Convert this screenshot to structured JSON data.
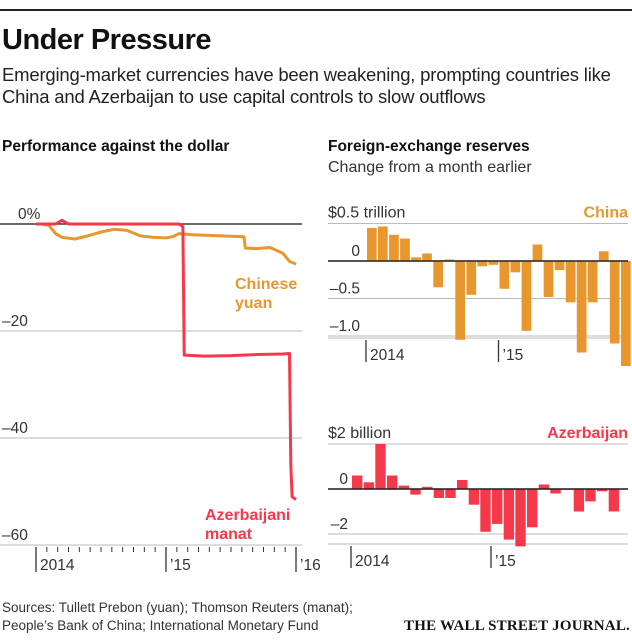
{
  "header": {
    "title": "Under Pressure",
    "subtitle": "Emerging-market currencies have been weakening, prompting countries like China and Azerbaijan to use capital controls to slow outflows"
  },
  "colors": {
    "yuan": "#E8962E",
    "manat": "#F5394A",
    "china_bars": "#E8962E",
    "azerbaijan_bars": "#F5394A",
    "axis": "#111111",
    "grid": "#BBBBBB"
  },
  "footer": {
    "sources_line1": "Sources: Tullett Prebon (yuan); Thomson Reuters (manat);",
    "sources_line2": "People’s Bank of China; International Monetary Fund",
    "publisher": "THE WALL STREET JOURNAL."
  },
  "chart_data": [
    {
      "type": "line",
      "title": "Performance against the dollar",
      "ylabel": "",
      "ylim": [
        -60,
        0
      ],
      "yticks": [
        {
          "value": 0,
          "label": "0%"
        },
        {
          "value": -20,
          "label": "–20"
        },
        {
          "value": -40,
          "label": "–40"
        },
        {
          "value": -60,
          "label": "–60"
        }
      ],
      "xlim": [
        2014.0,
        2016.0
      ],
      "xticks": [
        {
          "value": 2014.0,
          "label": "2014"
        },
        {
          "value": 2015.0,
          "label": "’15"
        },
        {
          "value": 2016.0,
          "label": "’16"
        }
      ],
      "series": [
        {
          "name": "Chinese yuan",
          "label_line1": "Chinese",
          "label_line2": "yuan",
          "x": [
            2014.0,
            2014.05,
            2014.1,
            2014.15,
            2014.2,
            2014.3,
            2014.4,
            2014.5,
            2014.6,
            2014.7,
            2014.8,
            2014.9,
            2015.0,
            2015.05,
            2015.1,
            2015.2,
            2015.3,
            2015.4,
            2015.5,
            2015.6,
            2015.61,
            2015.7,
            2015.8,
            2015.9,
            2015.95,
            2016.0
          ],
          "values": [
            0,
            0,
            -0.3,
            -1.8,
            -2.5,
            -2.8,
            -2.2,
            -1.5,
            -1.0,
            -1.2,
            -2.2,
            -2.5,
            -2.6,
            -2.4,
            -1.8,
            -2.0,
            -2.1,
            -2.2,
            -2.3,
            -2.4,
            -4.5,
            -4.6,
            -4.4,
            -5.5,
            -7.0,
            -7.5
          ]
        },
        {
          "name": "Azerbaijani manat",
          "label_line1": "Azerbaijani",
          "label_line2": "manat",
          "x": [
            2014.0,
            2014.15,
            2014.2,
            2014.25,
            2014.5,
            2014.8,
            2014.97,
            2015.1,
            2015.13,
            2015.14,
            2015.3,
            2015.5,
            2015.7,
            2015.9,
            2015.95,
            2015.96,
            2015.97,
            2016.0
          ],
          "values": [
            0,
            0,
            0.7,
            0,
            0,
            0,
            0,
            0,
            -0.5,
            -24.5,
            -24.7,
            -24.6,
            -24.4,
            -24.3,
            -24.2,
            -45,
            -51,
            -51.5
          ]
        }
      ],
      "grid": true,
      "legend": "inline-labels"
    },
    {
      "type": "bar",
      "title": "Foreign-exchange reserves",
      "subtitle": "Change from a month earlier",
      "panel_label": "China",
      "unit_label": "$0.5 trillion",
      "ylim": [
        -1.15,
        0.5
      ],
      "yticks": [
        {
          "value": 0.5,
          "label": "$0.5 trillion"
        },
        {
          "value": 0,
          "label": "0"
        },
        {
          "value": -0.5,
          "label": "–0.5"
        },
        {
          "value": -1.0,
          "label": "–1.0"
        }
      ],
      "xticks": [
        {
          "index": 0,
          "label": "2014"
        },
        {
          "index": 12,
          "label": "’15"
        }
      ],
      "categories": [
        "Jan 2014",
        "Feb 2014",
        "Mar 2014",
        "Apr 2014",
        "May 2014",
        "Jun 2014",
        "Jul 2014",
        "Aug 2014",
        "Sep 2014",
        "Oct 2014",
        "Nov 2014",
        "Dec 2014",
        "Jan 2015",
        "Feb 2015",
        "Mar 2015",
        "Apr 2015",
        "May 2015",
        "Jun 2015",
        "Jul 2015",
        "Aug 2015",
        "Sep 2015",
        "Oct 2015",
        "Nov 2015",
        "Dec 2015"
      ],
      "values": [
        0.44,
        0.46,
        0.35,
        0.3,
        0.05,
        0.1,
        -0.35,
        0.02,
        -1.05,
        -0.45,
        -0.07,
        -0.05,
        -0.37,
        -0.15,
        -0.93,
        0.22,
        -0.48,
        -0.12,
        -0.55,
        -1.22,
        -0.55,
        0.13,
        -1.1,
        -1.4
      ],
      "grid": true
    },
    {
      "type": "bar",
      "panel_label": "Azerbaijan",
      "unit_label": "$2 billion",
      "ylim": [
        -2.8,
        2.2
      ],
      "yticks": [
        {
          "value": 2,
          "label": "$2 billion"
        },
        {
          "value": 0,
          "label": "0"
        },
        {
          "value": -2,
          "label": "–2"
        }
      ],
      "xticks": [
        {
          "index": 0,
          "label": "2014"
        },
        {
          "index": 12,
          "label": "’15"
        }
      ],
      "categories": [
        "Jan 2014",
        "Feb 2014",
        "Mar 2014",
        "Apr 2014",
        "May 2014",
        "Jun 2014",
        "Jul 2014",
        "Aug 2014",
        "Sep 2014",
        "Oct 2014",
        "Nov 2014",
        "Dec 2014",
        "Jan 2015",
        "Feb 2015",
        "Mar 2015",
        "Apr 2015",
        "May 2015",
        "Jun 2015",
        "Jul 2015",
        "Aug 2015",
        "Sep 2015",
        "Oct 2015",
        "Nov 2015",
        "Dec 2015"
      ],
      "values": [
        0.6,
        0.3,
        2.0,
        0.6,
        0.15,
        -0.25,
        0.1,
        -0.4,
        -0.4,
        0.4,
        -0.7,
        -1.9,
        -1.55,
        -2.25,
        -2.55,
        -1.7,
        0.2,
        -0.2,
        0,
        -1.0,
        -0.55,
        -0.1,
        -1.0,
        null
      ],
      "grid": true
    }
  ]
}
